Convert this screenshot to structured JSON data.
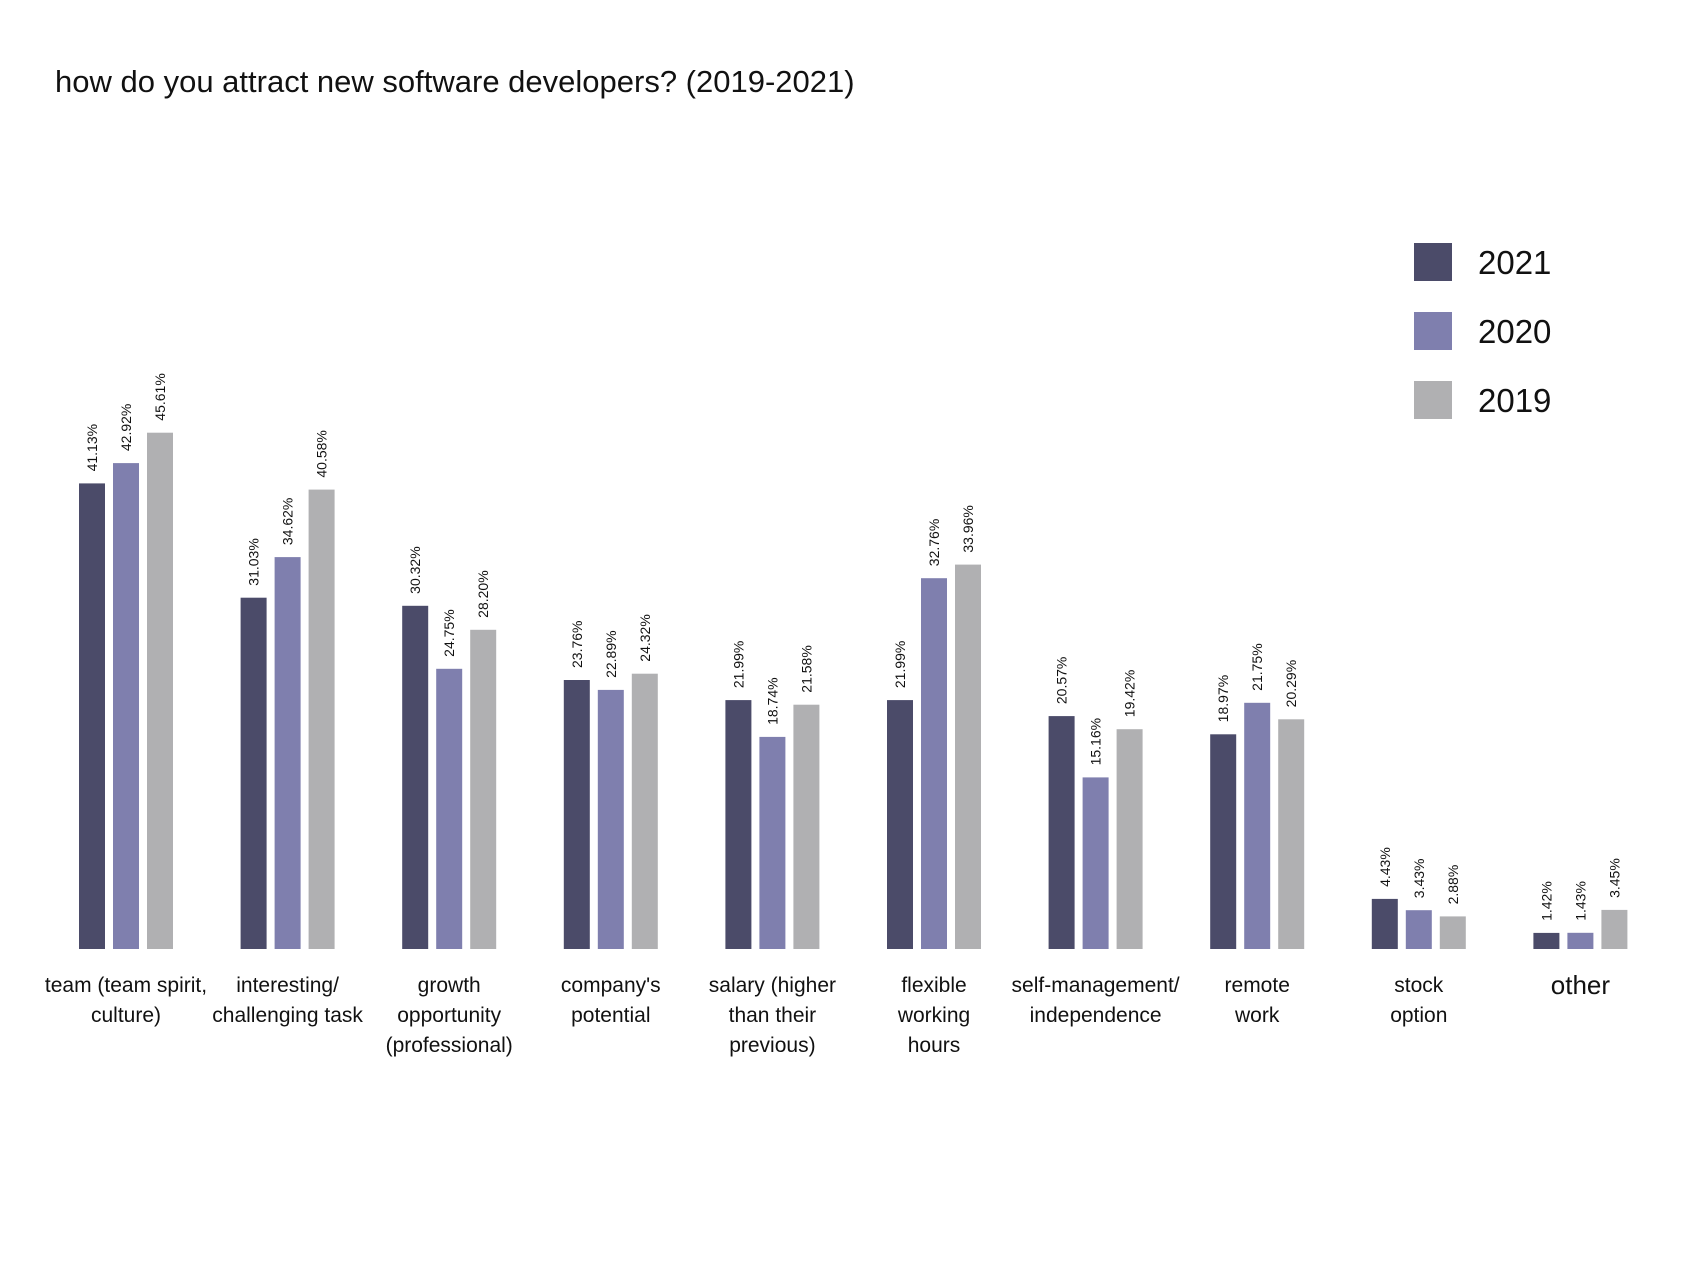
{
  "chart_data": {
    "type": "bar",
    "title": "how do you attract new software developers? (2019-2021)",
    "xlabel": "",
    "ylabel": "",
    "ylim": [
      0,
      50
    ],
    "grid": false,
    "legend_position": "top-right",
    "categories": [
      "team (team spirit, culture)",
      "interesting/ challenging task",
      "growth opportunity (professional)",
      "company's potential",
      "salary (higher than their previous)",
      "flexible working hours",
      "self-management/ independence",
      "remote work",
      "stock option",
      "other"
    ],
    "category_label_lines": [
      [
        "team (team spirit,",
        "culture)"
      ],
      [
        "interesting/",
        "challenging task"
      ],
      [
        "growth",
        "opportunity",
        "(professional)"
      ],
      [
        "company's",
        "potential"
      ],
      [
        "salary (higher",
        "than their",
        "previous)"
      ],
      [
        "flexible",
        "working",
        "hours"
      ],
      [
        "self-management/",
        "independence"
      ],
      [
        "remote",
        "work"
      ],
      [
        "stock",
        "option"
      ],
      [
        "other"
      ]
    ],
    "series": [
      {
        "name": "2021",
        "color": "#4b4b69",
        "values": [
          41.13,
          31.03,
          30.32,
          23.76,
          21.99,
          21.99,
          20.57,
          18.97,
          4.43,
          1.42
        ],
        "labels": [
          "41.13%",
          "31.03%",
          "30.32%",
          "23.76%",
          "21.99%",
          "21.99%",
          "20.57%",
          "18.97%",
          "4.43%",
          "1.42%"
        ]
      },
      {
        "name": "2020",
        "color": "#7f7fae",
        "values": [
          42.92,
          34.62,
          24.75,
          22.89,
          18.74,
          32.76,
          15.16,
          21.75,
          3.43,
          1.43
        ],
        "labels": [
          "42.92%",
          "34.62%",
          "24.75%",
          "22.89%",
          "18.74%",
          "32.76%",
          "15.16%",
          "21.75%",
          "3.43%",
          "1.43%"
        ]
      },
      {
        "name": "2019",
        "color": "#b0b0b2",
        "values": [
          45.61,
          40.58,
          28.2,
          24.32,
          21.58,
          33.96,
          19.42,
          20.29,
          2.88,
          3.45
        ],
        "labels": [
          "45.61%",
          "40.58%",
          "28.20%",
          "24.32%",
          "21.58%",
          "33.96%",
          "19.42%",
          "20.29%",
          "2.88%",
          "3.45%"
        ]
      }
    ]
  }
}
